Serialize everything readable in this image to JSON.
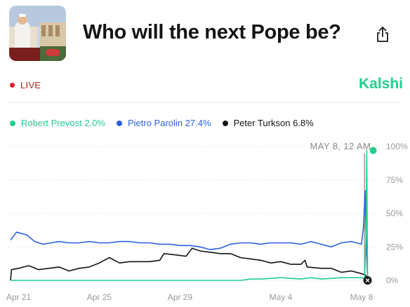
{
  "header": {
    "title": "Who will the next Pope be?",
    "share_icon": "share-icon"
  },
  "status": {
    "live_label": "LIVE",
    "live_color": "#d81f26"
  },
  "brand": {
    "name": "Kalshi",
    "color": "#1fcf8d"
  },
  "legend": [
    {
      "name": "Robert Prevost",
      "value": "2.0%",
      "color": "#1fcf8d"
    },
    {
      "name": "Pietro Parolin",
      "value": "27.4%",
      "color": "#2c5fe0"
    },
    {
      "name": "Peter Turkson",
      "value": "6.8%",
      "color": "#141414"
    }
  ],
  "chart_data": {
    "type": "line",
    "hover_label": "MAY 8, 12 AM",
    "y_ticks": [
      "100%",
      "75%",
      "50%",
      "25%",
      "0%"
    ],
    "y_tick_values": [
      100,
      75,
      50,
      25,
      0
    ],
    "x_tick_labels": [
      "Apr 21",
      "Apr 25",
      "Apr 29",
      "May 4",
      "May 8"
    ],
    "x_tick_days": [
      0,
      4,
      8,
      13,
      17
    ],
    "x_range_days": [
      -0.4,
      17.35
    ],
    "y_range": [
      0,
      100
    ],
    "grid": "dotted-horizontal",
    "series": [
      {
        "name": "Pietro Parolin",
        "color": "#2c5fe0",
        "points": [
          [
            -0.4,
            30
          ],
          [
            -0.1,
            36
          ],
          [
            0.4,
            34
          ],
          [
            0.8,
            29
          ],
          [
            1.2,
            27
          ],
          [
            1.6,
            28
          ],
          [
            2,
            29
          ],
          [
            2.5,
            28
          ],
          [
            3,
            28
          ],
          [
            3.5,
            29
          ],
          [
            4,
            28
          ],
          [
            4.5,
            28
          ],
          [
            5,
            29
          ],
          [
            5.5,
            29
          ],
          [
            6,
            28
          ],
          [
            6.5,
            28
          ],
          [
            7,
            27
          ],
          [
            7.5,
            27
          ],
          [
            8,
            26
          ],
          [
            8.5,
            26
          ],
          [
            9,
            25
          ],
          [
            9.5,
            23
          ],
          [
            10,
            24
          ],
          [
            10.5,
            27
          ],
          [
            11,
            28
          ],
          [
            11.5,
            28
          ],
          [
            12,
            27
          ],
          [
            12.5,
            28
          ],
          [
            13,
            28
          ],
          [
            13.5,
            28
          ],
          [
            14,
            27
          ],
          [
            14.5,
            29
          ],
          [
            15,
            27
          ],
          [
            15.5,
            25
          ],
          [
            16,
            28
          ],
          [
            16.5,
            29
          ],
          [
            17,
            27
          ],
          [
            17.1,
            40
          ],
          [
            17.18,
            67
          ],
          [
            17.22,
            35
          ],
          [
            17.3,
            0
          ]
        ]
      },
      {
        "name": "Peter Turkson",
        "color": "#141414",
        "points": [
          [
            -0.4,
            0
          ],
          [
            -0.35,
            8
          ],
          [
            0,
            9
          ],
          [
            0.5,
            11
          ],
          [
            1,
            8
          ],
          [
            1.5,
            9
          ],
          [
            2,
            10
          ],
          [
            2.5,
            7
          ],
          [
            3,
            9
          ],
          [
            3.5,
            10
          ],
          [
            4,
            13
          ],
          [
            4.5,
            17
          ],
          [
            5,
            13
          ],
          [
            5.5,
            14
          ],
          [
            6,
            14
          ],
          [
            6.5,
            14
          ],
          [
            7,
            15
          ],
          [
            7.2,
            20
          ],
          [
            7.8,
            19
          ],
          [
            8.3,
            18
          ],
          [
            8.6,
            24
          ],
          [
            9,
            22
          ],
          [
            9.5,
            21
          ],
          [
            10,
            20
          ],
          [
            10.5,
            20
          ],
          [
            11,
            17
          ],
          [
            11.5,
            16
          ],
          [
            12,
            15
          ],
          [
            12.5,
            13
          ],
          [
            13,
            14
          ],
          [
            13.5,
            12
          ],
          [
            14,
            12
          ],
          [
            14.2,
            15
          ],
          [
            14.3,
            10
          ],
          [
            15,
            9
          ],
          [
            15.5,
            9
          ],
          [
            16,
            6
          ],
          [
            16.5,
            7
          ],
          [
            17,
            5
          ],
          [
            17.2,
            4
          ],
          [
            17.3,
            0
          ]
        ]
      },
      {
        "name": "Robert Prevost",
        "color": "#1fcf8d",
        "points": [
          [
            -0.4,
            0
          ],
          [
            1,
            0
          ],
          [
            2,
            0
          ],
          [
            5,
            0
          ],
          [
            8,
            0
          ],
          [
            11,
            0
          ],
          [
            11.5,
            1
          ],
          [
            12,
            1
          ],
          [
            13,
            2
          ],
          [
            14,
            1
          ],
          [
            14.5,
            2
          ],
          [
            15,
            1
          ],
          [
            16,
            2
          ],
          [
            17,
            2
          ],
          [
            17.15,
            1
          ],
          [
            17.22,
            30
          ],
          [
            17.26,
            97
          ],
          [
            17.3,
            0
          ]
        ]
      }
    ]
  }
}
